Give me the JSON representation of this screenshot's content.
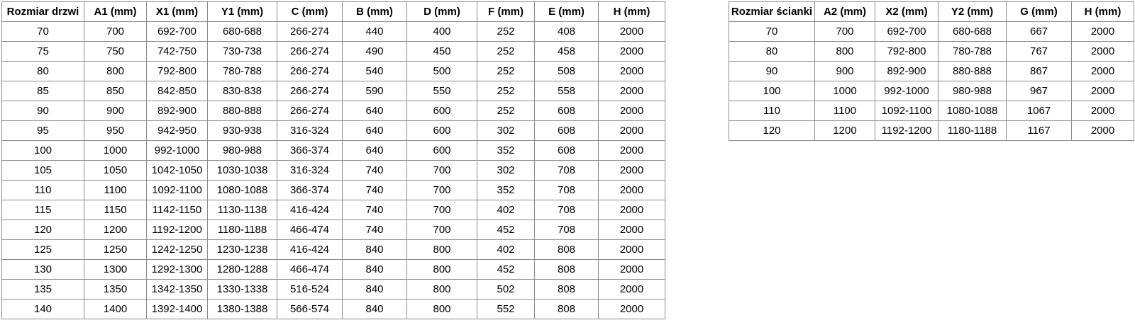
{
  "page": {
    "background_color": "#ffffff",
    "table_border_color": "#8c8c8c",
    "text_color": "#000000"
  },
  "tables": {
    "door": {
      "title": "Rozmiar drzwi table",
      "headers": [
        "Rozmiar drzwi",
        "A1 (mm)",
        "X1 (mm)",
        "Y1 (mm)",
        "C (mm)",
        "B (mm)",
        "D (mm)",
        "F (mm)",
        "E (mm)",
        "H (mm)"
      ],
      "rows": [
        [
          "70",
          "700",
          "692-700",
          "680-688",
          "266-274",
          "440",
          "400",
          "252",
          "408",
          "2000"
        ],
        [
          "75",
          "750",
          "742-750",
          "730-738",
          "266-274",
          "490",
          "450",
          "252",
          "458",
          "2000"
        ],
        [
          "80",
          "800",
          "792-800",
          "780-788",
          "266-274",
          "540",
          "500",
          "252",
          "508",
          "2000"
        ],
        [
          "85",
          "850",
          "842-850",
          "830-838",
          "266-274",
          "590",
          "550",
          "252",
          "558",
          "2000"
        ],
        [
          "90",
          "900",
          "892-900",
          "880-888",
          "266-274",
          "640",
          "600",
          "252",
          "608",
          "2000"
        ],
        [
          "95",
          "950",
          "942-950",
          "930-938",
          "316-324",
          "640",
          "600",
          "302",
          "608",
          "2000"
        ],
        [
          "100",
          "1000",
          "992-1000",
          "980-988",
          "366-374",
          "640",
          "600",
          "352",
          "608",
          "2000"
        ],
        [
          "105",
          "1050",
          "1042-1050",
          "1030-1038",
          "316-324",
          "740",
          "700",
          "302",
          "708",
          "2000"
        ],
        [
          "110",
          "1100",
          "1092-1100",
          "1080-1088",
          "366-374",
          "740",
          "700",
          "352",
          "708",
          "2000"
        ],
        [
          "115",
          "1150",
          "1142-1150",
          "1130-1138",
          "416-424",
          "740",
          "700",
          "402",
          "708",
          "2000"
        ],
        [
          "120",
          "1200",
          "1192-1200",
          "1180-1188",
          "466-474",
          "740",
          "700",
          "452",
          "708",
          "2000"
        ],
        [
          "125",
          "1250",
          "1242-1250",
          "1230-1238",
          "416-424",
          "840",
          "800",
          "402",
          "808",
          "2000"
        ],
        [
          "130",
          "1300",
          "1292-1300",
          "1280-1288",
          "466-474",
          "840",
          "800",
          "452",
          "808",
          "2000"
        ],
        [
          "135",
          "1350",
          "1342-1350",
          "1330-1338",
          "516-524",
          "840",
          "800",
          "502",
          "808",
          "2000"
        ],
        [
          "140",
          "1400",
          "1392-1400",
          "1380-1388",
          "566-574",
          "840",
          "800",
          "552",
          "808",
          "2000"
        ]
      ]
    },
    "wall": {
      "title": "Rozmiar ścianki table",
      "headers": [
        "Rozmiar ścianki",
        "A2 (mm)",
        "X2 (mm)",
        "Y2 (mm)",
        "G (mm)",
        "H (mm)"
      ],
      "rows": [
        [
          "70",
          "700",
          "692-700",
          "680-688",
          "667",
          "2000"
        ],
        [
          "80",
          "800",
          "792-800",
          "780-788",
          "767",
          "2000"
        ],
        [
          "90",
          "900",
          "892-900",
          "880-888",
          "867",
          "2000"
        ],
        [
          "100",
          "1000",
          "992-1000",
          "980-988",
          "967",
          "2000"
        ],
        [
          "110",
          "1100",
          "1092-1100",
          "1080-1088",
          "1067",
          "2000"
        ],
        [
          "120",
          "1200",
          "1192-1200",
          "1180-1188",
          "1167",
          "2000"
        ]
      ]
    }
  }
}
